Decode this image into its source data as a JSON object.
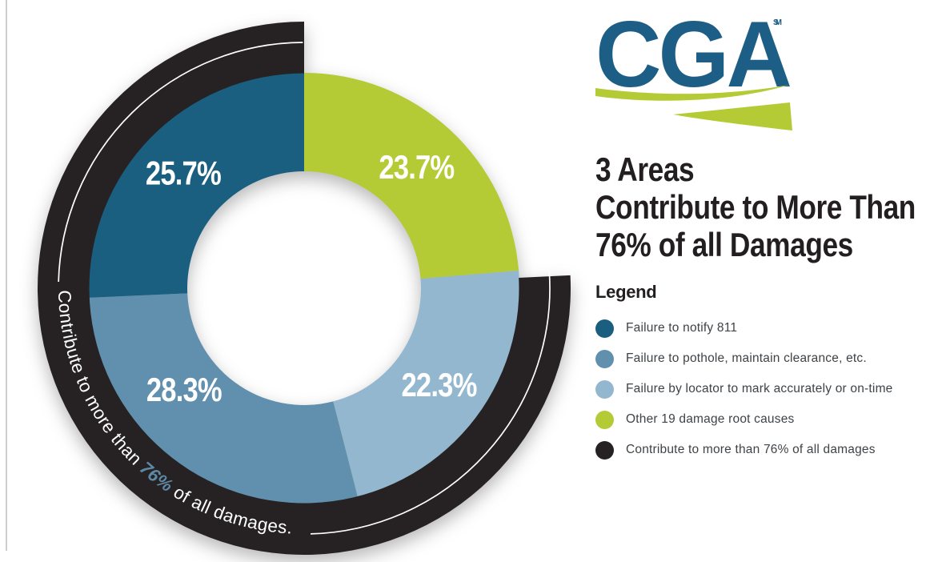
{
  "logo": {
    "text": "CGA",
    "trademark": "SM",
    "blue": "#1D5E87",
    "green": "#B5CB35"
  },
  "title": {
    "lines": [
      "3 Areas",
      "Contribute to More Than",
      "76% of all Damages"
    ],
    "color": "#231F20"
  },
  "legend": {
    "heading": "Legend",
    "items": [
      {
        "label": "Failure to notify 811",
        "color": "#1A5F80"
      },
      {
        "label": "Failure to pothole, maintain clearance, etc.",
        "color": "#6090AE"
      },
      {
        "label": "Failure by locator to mark accurately or on-time",
        "color": "#93B7CE"
      },
      {
        "label": "Other 19 damage root causes",
        "color": "#B5CB35"
      },
      {
        "label": "Contribute to more than 76% of all damages",
        "color": "#262122"
      }
    ]
  },
  "chart_data": {
    "type": "donut",
    "title": "3 Areas Contribute to More Than 76% of all Damages",
    "start_angle": "12 o'clock, clockwise",
    "segments": [
      {
        "label": "Other 19 damage root causes",
        "value": 23.7,
        "display": "23.7%",
        "color": "#B5CB35"
      },
      {
        "label": "Failure by locator to mark accurately or on-time",
        "value": 22.3,
        "display": "22.3%",
        "color": "#93B7CE"
      },
      {
        "label": "Failure to pothole, maintain clearance, etc.",
        "value": 28.3,
        "display": "28.3%",
        "color": "#6090AE"
      },
      {
        "label": "Failure to notify 811",
        "value": 25.7,
        "display": "25.7%",
        "color": "#1A5F80"
      }
    ],
    "label_color": "#FFFFFF",
    "outer_ring": {
      "label": "Contribute to more than 76% of all damages.",
      "text_parts": [
        "Contribute to more than",
        "76%",
        "of all damages."
      ],
      "coverage_value": 76.3,
      "color": "#262122",
      "text_color": "#FFFFFF",
      "highlight_color": "#5E89A6"
    }
  }
}
